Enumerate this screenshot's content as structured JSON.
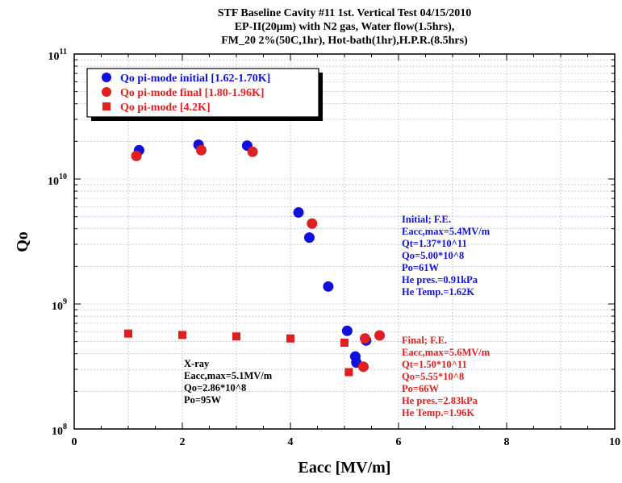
{
  "chart_data": {
    "type": "scatter",
    "title_lines": [
      "STF Baseline Cavity #11 1st. Vertical Test 04/15/2010",
      "EP-II(20μm) with N2 gas, Water flow(1.5hrs),",
      "FM_20 2%(50C,1hr), Hot-bath(1hr),H.P.R.(8.5hrs)"
    ],
    "xlabel": "Eacc [MV/m]",
    "ylabel": "Qo",
    "xlim": [
      0,
      10
    ],
    "ylim": [
      100000000,
      100000000000
    ],
    "yscale": "log",
    "grid": true,
    "x_ticks": [
      "0",
      "2",
      "4",
      "6",
      "8",
      "10"
    ],
    "y_tick_labels": [
      {
        "base": "10",
        "exp": "8"
      },
      {
        "base": "10",
        "exp": "9"
      },
      {
        "base": "10",
        "exp": "10"
      },
      {
        "base": "10",
        "exp": "11"
      }
    ],
    "legend_position": "top-left",
    "series": [
      {
        "name": "Qo pi-mode initial [1.62-1.70K]",
        "color": "#1010dd",
        "marker": "circle",
        "x": [
          1.2,
          2.3,
          3.2,
          4.15,
          4.35,
          4.7,
          5.05,
          5.2,
          5.22,
          5.4
        ],
        "y": [
          17000000000,
          18800000000,
          18500000000,
          5400000000,
          3400000000,
          1380000000,
          610000000,
          380000000,
          340000000,
          510000000
        ]
      },
      {
        "name": "Qo pi-mode final [1.80-1.96K]",
        "color": "#e02020",
        "marker": "circle",
        "x": [
          1.15,
          2.35,
          3.3,
          4.4,
          5.35,
          5.38,
          5.65
        ],
        "y": [
          15300000000,
          17000000000,
          16500000000,
          4400000000,
          315000000,
          530000000,
          560000000
        ]
      },
      {
        "name": "Qo pi-mode [4.2K]",
        "color": "#e02020",
        "marker": "square",
        "x": [
          1.0,
          2.0,
          3.0,
          4.0,
          5.0,
          5.08
        ],
        "y": [
          580000000,
          565000000,
          550000000,
          530000000,
          490000000,
          285000000
        ]
      }
    ],
    "annotations": [
      {
        "id": "initial",
        "color": "#1010dd",
        "lines": [
          "Initial; F.E.",
          "Eacc,max=5.4MV/m",
          "Qt=1.37*10^11",
          "Qo=5.00*10^8",
          "Po=61W",
          "He pres.=0.91kPa",
          "He Temp.=1.62K"
        ]
      },
      {
        "id": "final",
        "color": "#e02020",
        "lines": [
          "Final; F.E.",
          "Eacc,max=5.6MV/m",
          "Qt=1.50*10^11",
          "Qo=5.55*10^8",
          "Po=66W",
          "He pres.=2.83kPa",
          "He Temp.=1.96K"
        ]
      },
      {
        "id": "xray",
        "color": "#000000",
        "lines": [
          "X-ray",
          "Eacc,max=5.1MV/m",
          "Qo=2.86*10^8",
          "Po=95W"
        ]
      }
    ]
  }
}
